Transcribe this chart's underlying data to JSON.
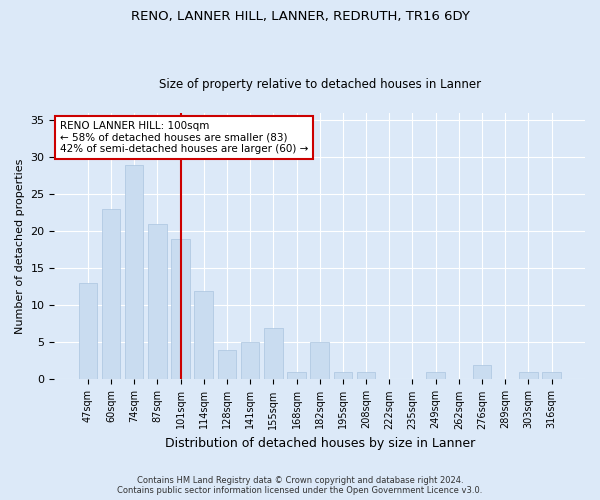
{
  "title1": "RENO, LANNER HILL, LANNER, REDRUTH, TR16 6DY",
  "title2": "Size of property relative to detached houses in Lanner",
  "xlabel": "Distribution of detached houses by size in Lanner",
  "ylabel": "Number of detached properties",
  "categories": [
    "47sqm",
    "60sqm",
    "74sqm",
    "87sqm",
    "101sqm",
    "114sqm",
    "128sqm",
    "141sqm",
    "155sqm",
    "168sqm",
    "182sqm",
    "195sqm",
    "208sqm",
    "222sqm",
    "235sqm",
    "249sqm",
    "262sqm",
    "276sqm",
    "289sqm",
    "303sqm",
    "316sqm"
  ],
  "values": [
    13,
    23,
    29,
    21,
    19,
    12,
    4,
    5,
    7,
    1,
    5,
    1,
    1,
    0,
    0,
    1,
    0,
    2,
    0,
    1,
    1
  ],
  "bar_color": "#c9dcf0",
  "bar_edge_color": "#aac4e0",
  "vline_color": "#cc0000",
  "annotation_title": "RENO LANNER HILL: 100sqm",
  "annotation_line2": "← 58% of detached houses are smaller (83)",
  "annotation_line3": "42% of semi-detached houses are larger (60) →",
  "annotation_box_color": "#cc0000",
  "ylim": [
    0,
    36
  ],
  "yticks": [
    0,
    5,
    10,
    15,
    20,
    25,
    30,
    35
  ],
  "footer1": "Contains HM Land Registry data © Crown copyright and database right 2024.",
  "footer2": "Contains public sector information licensed under the Open Government Licence v3.0.",
  "bg_color": "#dce9f8",
  "plot_bg_color": "#dce9f8"
}
